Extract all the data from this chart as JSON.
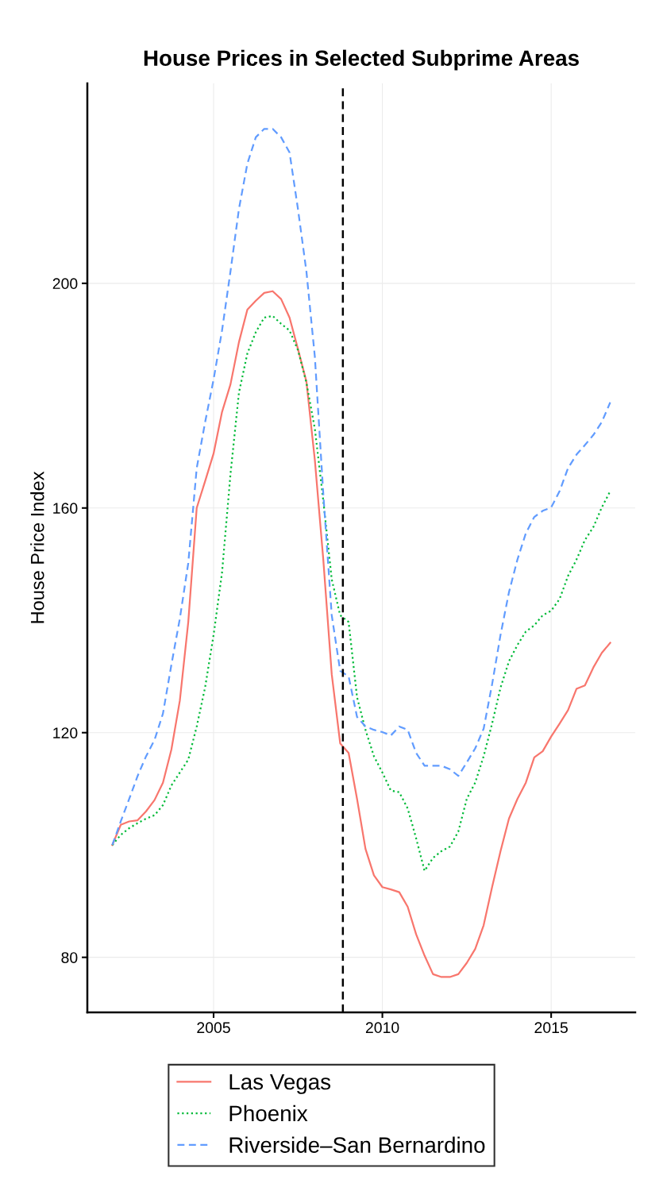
{
  "chart_data": {
    "type": "line",
    "title": "House Prices in Selected Subprime Areas",
    "ylabel": "House Price Index",
    "x": [
      2002,
      2002.25,
      2002.5,
      2002.75,
      2003,
      2003.25,
      2003.5,
      2003.75,
      2004,
      2004.25,
      2004.5,
      2004.75,
      2005,
      2005.25,
      2005.5,
      2005.75,
      2006,
      2006.25,
      2006.5,
      2006.75,
      2007,
      2007.25,
      2007.5,
      2007.75,
      2008,
      2008.25,
      2008.5,
      2008.75,
      2009,
      2009.25,
      2009.5,
      2009.75,
      2010,
      2010.25,
      2010.5,
      2010.75,
      2011,
      2011.25,
      2011.5,
      2011.75,
      2012,
      2012.25,
      2012.5,
      2012.75,
      2013,
      2013.25,
      2013.5,
      2013.75,
      2014,
      2014.25,
      2014.5,
      2014.75,
      2015,
      2015.25,
      2015.5,
      2015.75,
      2016,
      2016.25,
      2016.5,
      2016.75
    ],
    "series": [
      {
        "name": "Las Vegas",
        "color": "#f8766d",
        "line_style": "solid",
        "values": [
          100,
          103.6,
          104.2,
          104.4,
          106,
          108,
          111.1,
          117,
          125.7,
          139.7,
          160,
          164.8,
          169.7,
          177.1,
          182,
          189.5,
          195.3,
          196.9,
          198.3,
          198.6,
          197.2,
          193.9,
          188.3,
          182.5,
          168.5,
          150.8,
          130.4,
          118.1,
          116.4,
          108.2,
          99.3,
          94.6,
          92.5,
          92.1,
          91.6,
          89,
          84.1,
          80.3,
          77,
          76.5,
          76.5,
          77,
          79,
          81.5,
          85.7,
          92.5,
          98.9,
          104.7,
          108.2,
          111.1,
          115.6,
          116.7,
          119.3,
          121.6,
          124,
          127.8,
          128.4,
          131.6,
          134.2,
          136
        ]
      },
      {
        "name": "Phoenix",
        "color": "#00ba38",
        "line_style": "dotted",
        "values": [
          100,
          101.8,
          103,
          103.9,
          104.7,
          105.3,
          107.1,
          110.6,
          112.9,
          115.2,
          121.1,
          128.1,
          137.4,
          148.5,
          166,
          180.5,
          187.5,
          191.3,
          193.9,
          194.2,
          192.8,
          191.6,
          188.1,
          182.3,
          174.1,
          161.3,
          147.3,
          140.9,
          139.7,
          126.3,
          120.5,
          115.8,
          112.9,
          109.7,
          109.4,
          106.5,
          101.2,
          95.4,
          97.7,
          98.9,
          99.7,
          102.4,
          108.2,
          111.1,
          115.8,
          121.6,
          128,
          132.7,
          135.6,
          138,
          139.1,
          140.9,
          141.7,
          143.8,
          147.9,
          150.8,
          154.3,
          156.6,
          160.1,
          163
        ]
      },
      {
        "name": "Riverside–San Bernardino",
        "color": "#619cff",
        "line_style": "dashed",
        "values": [
          100,
          104.2,
          108.2,
          112.3,
          115.8,
          118.7,
          123.4,
          132.1,
          140.3,
          150.2,
          167.1,
          175.3,
          182.9,
          191.6,
          202.1,
          213.2,
          221.3,
          226,
          227.5,
          227.5,
          226,
          223.3,
          213.2,
          202.1,
          186.9,
          162.5,
          140.9,
          131,
          130,
          122.8,
          121.1,
          120.5,
          120.1,
          119.5,
          121.1,
          120.5,
          116.4,
          114.1,
          114.1,
          114.1,
          113.5,
          112.3,
          114.7,
          117.2,
          120.7,
          128.6,
          137.4,
          145,
          150.8,
          155.5,
          158.4,
          159.5,
          160.1,
          163,
          167.1,
          169.5,
          171.2,
          173,
          175.3,
          178.8
        ]
      }
    ],
    "xlim": [
      2001.26,
      2017.49
    ],
    "xticks": [
      2005,
      2010,
      2015
    ],
    "ylim": [
      70.2,
      235.6
    ],
    "yticks": [
      80,
      120,
      160,
      200
    ],
    "grid": true,
    "legend": "bottom",
    "ref_lines": [
      {
        "axis": "x",
        "value": 2008.83,
        "color": "#000000",
        "line_style": "dashed"
      }
    ]
  }
}
